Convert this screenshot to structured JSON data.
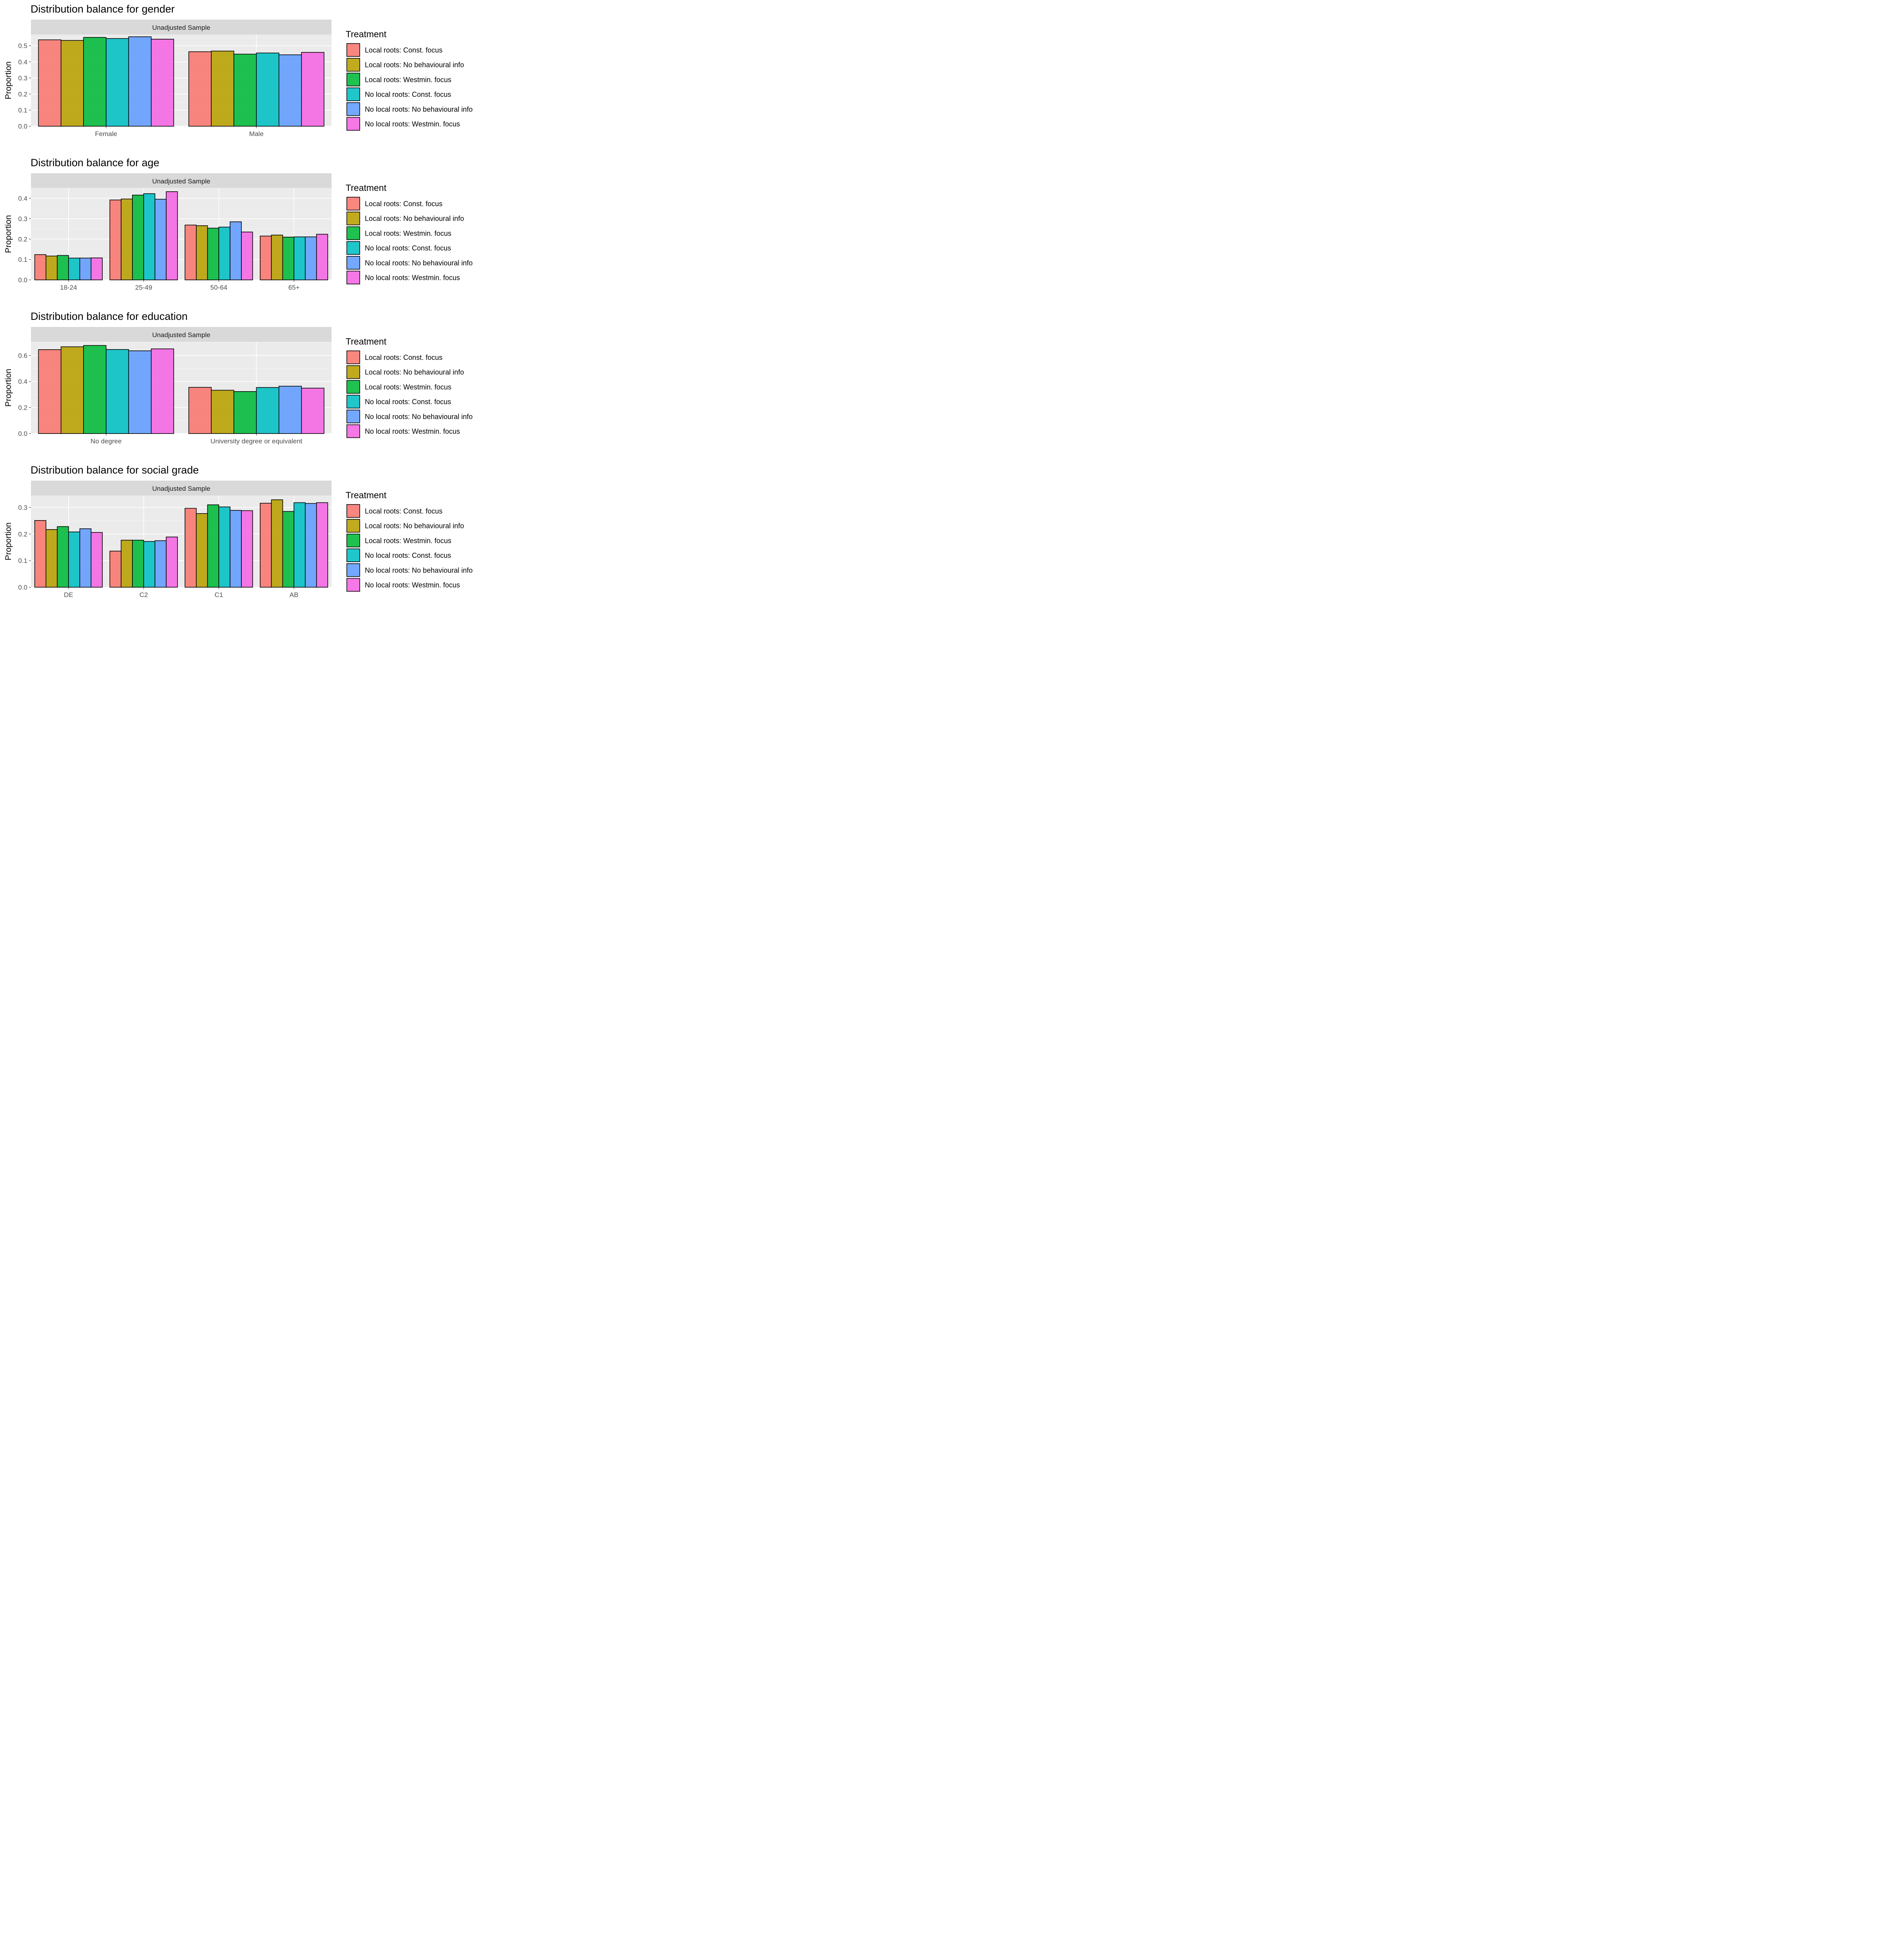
{
  "strip_label": "Unadjusted Sample",
  "legend": {
    "title": "Treatment",
    "items": [
      {
        "label": "Local roots: Const. focus",
        "color": "#F8766D"
      },
      {
        "label": "Local roots: No behavioural info",
        "color": "#B79F00"
      },
      {
        "label": "Local roots: Westmin. focus",
        "color": "#00BA38"
      },
      {
        "label": "No local roots: Const. focus",
        "color": "#00BFC4"
      },
      {
        "label": "No local roots: No behavioural info",
        "color": "#619CFF"
      },
      {
        "label": "No local roots: Westmin. focus",
        "color": "#F564E3"
      }
    ]
  },
  "chart_data": [
    {
      "type": "bar",
      "title": "Distribution balance for gender",
      "ylabel": "Proportion",
      "xlabel": "",
      "categories": [
        "Female",
        "Male"
      ],
      "ylim": [
        0,
        0.57
      ],
      "yticks": [
        0.0,
        0.1,
        0.2,
        0.3,
        0.4,
        0.5
      ],
      "tick_decimals": 1,
      "grid": true,
      "legend_position": "right",
      "series": [
        {
          "name": "Local roots: Const. focus",
          "values": [
            0.537,
            0.463
          ]
        },
        {
          "name": "Local roots: No behavioural info",
          "values": [
            0.533,
            0.467
          ]
        },
        {
          "name": "Local roots: Westmin. focus",
          "values": [
            0.552,
            0.448
          ]
        },
        {
          "name": "No local roots: Const. focus",
          "values": [
            0.545,
            0.455
          ]
        },
        {
          "name": "No local roots: No behavioural info",
          "values": [
            0.556,
            0.444
          ]
        },
        {
          "name": "No local roots: Westmin. focus",
          "values": [
            0.541,
            0.459
          ]
        }
      ]
    },
    {
      "type": "bar",
      "title": "Distribution balance for age",
      "ylabel": "Proportion",
      "xlabel": "",
      "categories": [
        "18-24",
        "25-49",
        "50-64",
        "65+"
      ],
      "ylim": [
        0,
        0.45
      ],
      "yticks": [
        0.0,
        0.1,
        0.2,
        0.3,
        0.4
      ],
      "tick_decimals": 1,
      "grid": true,
      "legend_position": "right",
      "series": [
        {
          "name": "Local roots: Const. focus",
          "values": [
            0.124,
            0.392,
            0.269,
            0.215
          ]
        },
        {
          "name": "Local roots: No behavioural info",
          "values": [
            0.117,
            0.397,
            0.266,
            0.22
          ]
        },
        {
          "name": "Local roots: Westmin. focus",
          "values": [
            0.12,
            0.416,
            0.254,
            0.21
          ]
        },
        {
          "name": "No local roots: Const. focus",
          "values": [
            0.107,
            0.423,
            0.259,
            0.211
          ]
        },
        {
          "name": "No local roots: No behavioural info",
          "values": [
            0.107,
            0.396,
            0.285,
            0.211
          ]
        },
        {
          "name": "No local roots: Westmin. focus",
          "values": [
            0.108,
            0.433,
            0.235,
            0.224
          ]
        }
      ]
    },
    {
      "type": "bar",
      "title": "Distribution balance for education",
      "ylabel": "Proportion",
      "xlabel": "",
      "categories": [
        "No degree",
        "University degree or equivalent"
      ],
      "ylim": [
        0,
        0.705
      ],
      "yticks": [
        0.0,
        0.2,
        0.4,
        0.6
      ],
      "tick_decimals": 1,
      "grid": true,
      "legend_position": "right",
      "series": [
        {
          "name": "Local roots: Const. focus",
          "values": [
            0.645,
            0.355
          ]
        },
        {
          "name": "Local roots: No behavioural info",
          "values": [
            0.667,
            0.333
          ]
        },
        {
          "name": "Local roots: Westmin. focus",
          "values": [
            0.677,
            0.323
          ]
        },
        {
          "name": "No local roots: Const. focus",
          "values": [
            0.646,
            0.354
          ]
        },
        {
          "name": "No local roots: No behavioural info",
          "values": [
            0.636,
            0.364
          ]
        },
        {
          "name": "No local roots: Westmin. focus",
          "values": [
            0.651,
            0.349
          ]
        }
      ]
    },
    {
      "type": "bar",
      "title": "Distribution balance for social grade",
      "ylabel": "Proportion",
      "xlabel": "",
      "categories": [
        "DE",
        "C2",
        "C1",
        "AB"
      ],
      "ylim": [
        0,
        0.345
      ],
      "yticks": [
        0.0,
        0.1,
        0.2,
        0.3
      ],
      "tick_decimals": 1,
      "grid": true,
      "legend_position": "right",
      "series": [
        {
          "name": "Local roots: Const. focus",
          "values": [
            0.251,
            0.136,
            0.297,
            0.316
          ]
        },
        {
          "name": "Local roots: No behavioural info",
          "values": [
            0.217,
            0.177,
            0.277,
            0.329
          ]
        },
        {
          "name": "Local roots: Westmin. focus",
          "values": [
            0.228,
            0.177,
            0.31,
            0.285
          ]
        },
        {
          "name": "No local roots: Const. focus",
          "values": [
            0.208,
            0.172,
            0.302,
            0.318
          ]
        },
        {
          "name": "No local roots: No behavioural info",
          "values": [
            0.22,
            0.175,
            0.289,
            0.315
          ]
        },
        {
          "name": "No local roots: Westmin. focus",
          "values": [
            0.206,
            0.189,
            0.288,
            0.318
          ]
        }
      ]
    }
  ]
}
